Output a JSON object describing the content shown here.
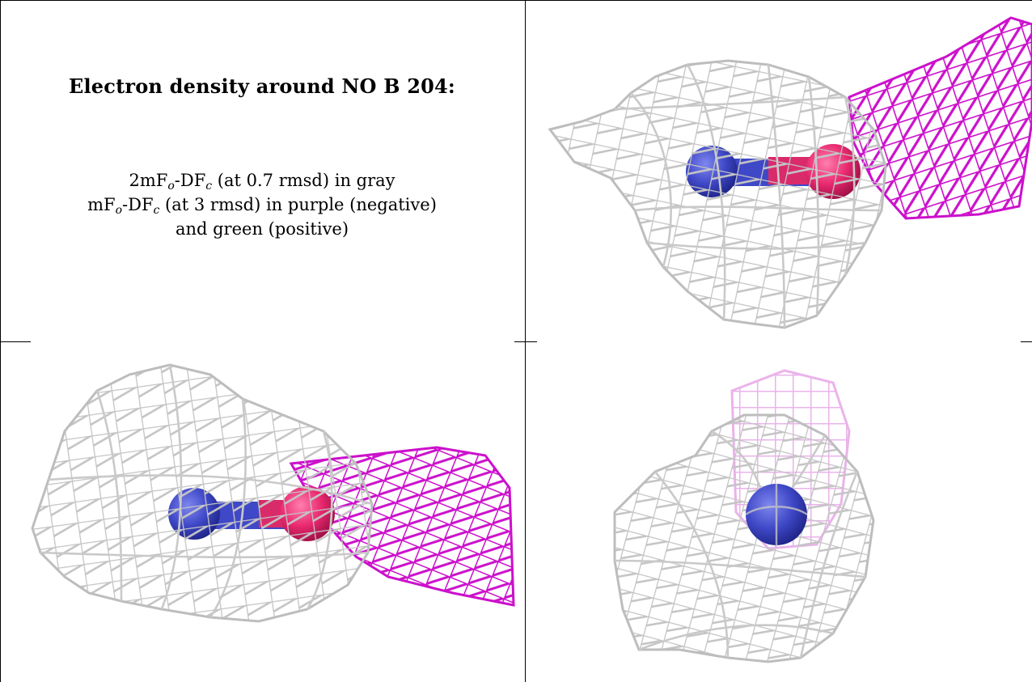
{
  "caption": {
    "title": "Electron density around NO B 204:",
    "line1": {
      "prefix": "2mF",
      "sub_o": "o",
      "mid": "-DF",
      "sub_c": "c",
      "suffix": " (at 0.7 rmsd) in gray"
    },
    "line2": {
      "prefix": "mF",
      "sub_o": "o",
      "mid": "-DF",
      "sub_c": "c",
      "suffix": " (at 3 rmsd) in purple (negative)"
    },
    "line3": "and green (positive)"
  },
  "colors": {
    "gray_mesh": "#c4c4c4",
    "gray_mesh_dark": "#a9a9a9",
    "purple_mesh": "#cc10cc",
    "purple_mesh_faint": "#eab3ea",
    "nitrogen": "#3f48c6",
    "oxygen": "#e8286e"
  },
  "panels": [
    {
      "name": "view-side-1",
      "atoms": [
        "N",
        "O"
      ]
    },
    {
      "name": "view-side-2",
      "atoms": [
        "N",
        "O"
      ]
    },
    {
      "name": "view-end-on",
      "atoms": [
        "N"
      ]
    }
  ]
}
